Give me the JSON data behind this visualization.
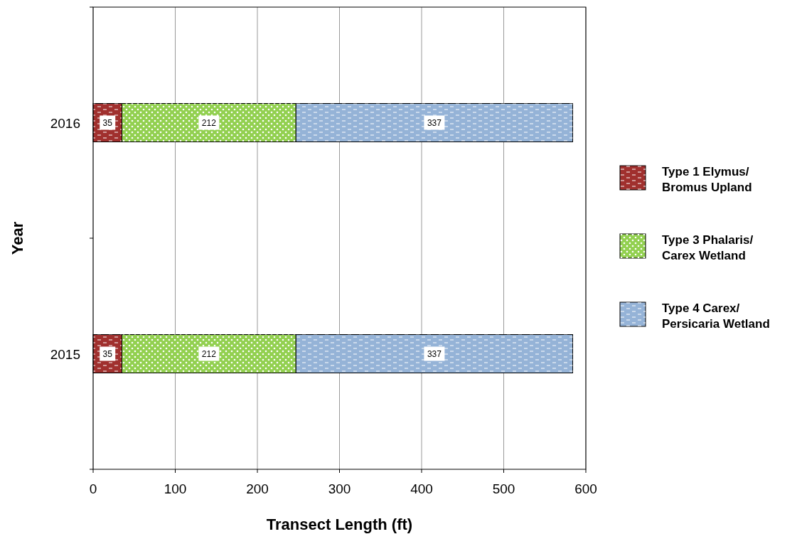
{
  "chart_data": {
    "type": "bar",
    "orientation": "horizontal",
    "stacked": true,
    "xlabel": "Transect Length (ft)",
    "ylabel": "Year",
    "categories": [
      "2016",
      "2015"
    ],
    "series": [
      {
        "name": "Type 1 Elymus/ Bromus Upland",
        "color": "#a0302e",
        "values": [
          35,
          35
        ]
      },
      {
        "name": "Type 3 Phalaris/ Carex Wetland",
        "color": "#92d050",
        "values": [
          212,
          212
        ]
      },
      {
        "name": "Type 4 Carex/ Persicaria Wetland",
        "color": "#95b3d7",
        "values": [
          337,
          337
        ]
      }
    ],
    "xlim": [
      0,
      600
    ],
    "xticks": [
      0,
      100,
      200,
      300,
      400,
      500,
      600
    ],
    "grid": "x",
    "legend": "right",
    "data_labels": true
  }
}
